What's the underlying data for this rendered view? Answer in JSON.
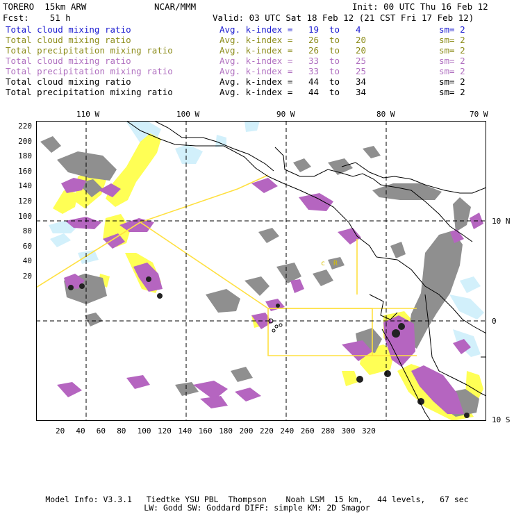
{
  "header": {
    "model": "TORERO  15km ARW",
    "org": "NCAR/MMM",
    "init": "Init: 00 UTC Thu 16 Feb 12",
    "fcst": "Fcst:    51 h",
    "valid": "Valid: 03 UTC Sat 18 Feb 12 (21 CST Fri 17 Feb 12)"
  },
  "legend": [
    {
      "field": "Total cloud mixing ratio",
      "idx_label": "Avg. k-index =",
      "from": "19",
      "to_word": "to",
      "to": "4",
      "sm": "sm= 2",
      "color": "#1a1ad0"
    },
    {
      "field": "Total cloud mixing ratio",
      "idx_label": "Avg. k-index =",
      "from": "26",
      "to_word": "to",
      "to": "20",
      "sm": "sm= 2",
      "color": "#8c8c1a"
    },
    {
      "field": "Total precipitation mixing ratio",
      "idx_label": "Avg. k-index =",
      "from": "26",
      "to_word": "to",
      "to": "20",
      "sm": "sm= 2",
      "color": "#8c8c1a"
    },
    {
      "field": "Total cloud mixing ratio",
      "idx_label": "Avg. k-index =",
      "from": "33",
      "to_word": "to",
      "to": "25",
      "sm": "sm= 2",
      "color": "#b070c0"
    },
    {
      "field": "Total precipitation mixing ratio",
      "idx_label": "Avg. k-index =",
      "from": "33",
      "to_word": "to",
      "to": "25",
      "sm": "sm= 2",
      "color": "#b070c0"
    },
    {
      "field": "Total cloud mixing ratio",
      "idx_label": "Avg. k-index =",
      "from": "44",
      "to_word": "to",
      "to": "34",
      "sm": "sm= 2",
      "color": "#000000"
    },
    {
      "field": "Total precipitation mixing ratio",
      "idx_label": "Avg. k-index =",
      "from": "44",
      "to_word": "to",
      "to": "34",
      "sm": "sm= 2",
      "color": "#000000"
    }
  ],
  "axes": {
    "top_lon": [
      "110 W",
      "100 W",
      "90 W",
      "80 W",
      "70 W"
    ],
    "right_lat": [
      "10 N",
      "0",
      "10 S"
    ],
    "left_y": [
      "220",
      "200",
      "180",
      "160",
      "140",
      "120",
      "100",
      "80",
      "60",
      "40",
      "20"
    ],
    "bottom_x": [
      "20",
      "40",
      "60",
      "80",
      "100",
      "120",
      "140",
      "160",
      "180",
      "200",
      "220",
      "240",
      "260",
      "280",
      "300",
      "320"
    ]
  },
  "map_labels": {
    "c": "c",
    "r": "R"
  },
  "footer": {
    "line1": "Model Info: V3.3.1   Tiedtke YSU PBL  Thompson    Noah LSM  15 km,   44 levels,   67 sec",
    "line2": "LW: Godd SW: Goddard DIFF: simple KM: 2D Smagor"
  },
  "colors": {
    "gray": "#8a8a8a",
    "purple": "#b565c0",
    "yellow": "#ffff55",
    "lightblue": "#cdeefa",
    "black_cells": "#1a1a1a",
    "outline": "#ffe040"
  }
}
